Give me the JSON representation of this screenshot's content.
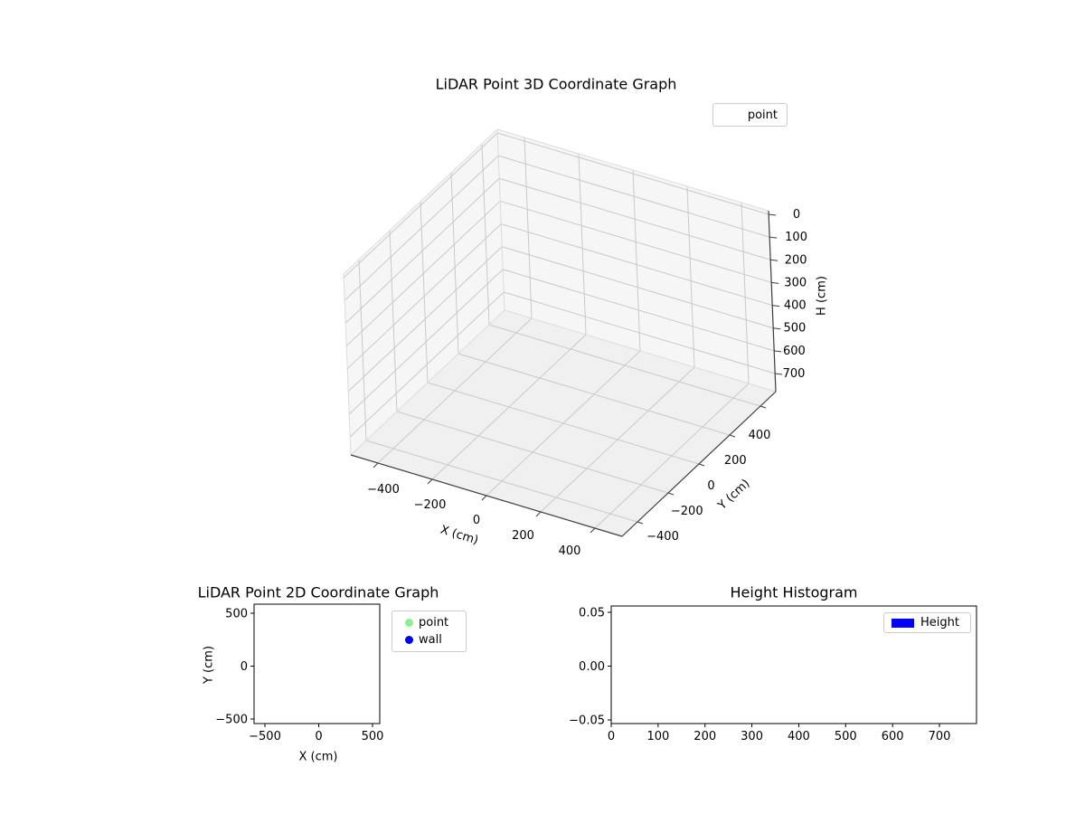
{
  "colors": {
    "point": "#90ee90",
    "wall": "#0000ff",
    "height_bar": "#0000ff",
    "grid": "#c9c9c9",
    "pane_edge": "#dcdcdc",
    "pane_wall": "#f6f6f6",
    "pane_floor": "#f0f0f0",
    "spine": "#3c3c3c",
    "axes_edge": "#000000"
  },
  "plot3d": {
    "title": "LiDAR Point 3D Coordinate Graph",
    "xlabel": "X (cm)",
    "ylabel": "Y (cm)",
    "zlabel": "H (cm)",
    "legend_label": "point"
  },
  "plot2d": {
    "title": "LiDAR Point 2D Coordinate Graph",
    "xlabel": "X (cm)",
    "ylabel": "Y (cm)",
    "legend_point": "point",
    "legend_wall": "wall"
  },
  "hist": {
    "title": "Height Histogram",
    "legend_label": "Height"
  },
  "chart_data": [
    {
      "type": "scatter",
      "subtype": "3d",
      "title": "LiDAR Point 3D Coordinate Graph",
      "xlabel": "X (cm)",
      "ylabel": "Y (cm)",
      "zlabel": "H (cm)",
      "xlim": [
        -500,
        500
      ],
      "ylim": [
        -500,
        500
      ],
      "zlim": [
        0,
        750
      ],
      "zaxis_inverted": true,
      "xticks": [
        -400,
        -200,
        0,
        200,
        400
      ],
      "xtick_labels": [
        "−400",
        "−200",
        "0",
        "200",
        "400"
      ],
      "yticks": [
        -400,
        -200,
        0,
        200,
        400
      ],
      "ytick_labels": [
        "−400",
        "−200",
        "0",
        "200",
        "400"
      ],
      "zticks": [
        0,
        100,
        200,
        300,
        400,
        500,
        600,
        700
      ],
      "ztick_labels": [
        "0",
        "100",
        "200",
        "300",
        "400",
        "500",
        "600",
        "700"
      ],
      "legend": [
        "point"
      ],
      "legend_position": "upper right",
      "grid": true,
      "series": [
        {
          "name": "point",
          "points": []
        }
      ]
    },
    {
      "type": "scatter",
      "title": "LiDAR Point 2D Coordinate Graph",
      "xlabel": "X (cm)",
      "ylabel": "Y (cm)",
      "xlim": [
        -600,
        600
      ],
      "ylim": [
        -600,
        600
      ],
      "xticks": [
        -500,
        0,
        500
      ],
      "xtick_labels": [
        "−500",
        "0",
        "500"
      ],
      "yticks": [
        -500,
        0,
        500
      ],
      "ytick_labels": [
        "−500",
        "0",
        "500"
      ],
      "legend": [
        "point",
        "wall"
      ],
      "legend_position": "outside upper right",
      "grid": false,
      "series": [
        {
          "name": "point",
          "color": "#90ee90",
          "points": []
        },
        {
          "name": "wall",
          "color": "#0000ff",
          "points": []
        }
      ]
    },
    {
      "type": "bar",
      "subtype": "histogram",
      "title": "Height Histogram",
      "xlabel": "",
      "ylabel": "",
      "xlim": [
        0,
        780
      ],
      "ylim": [
        -0.055,
        0.055
      ],
      "xticks": [
        0,
        100,
        200,
        300,
        400,
        500,
        600,
        700
      ],
      "xtick_labels": [
        "0",
        "100",
        "200",
        "300",
        "400",
        "500",
        "600",
        "700"
      ],
      "yticks": [
        -0.05,
        0,
        0.05
      ],
      "ytick_labels": [
        "−0.05",
        "0.00",
        "0.05"
      ],
      "legend": [
        "Height"
      ],
      "legend_position": "upper right",
      "grid": false,
      "series": [
        {
          "name": "Height",
          "color": "#0000ff",
          "values": []
        }
      ]
    }
  ]
}
